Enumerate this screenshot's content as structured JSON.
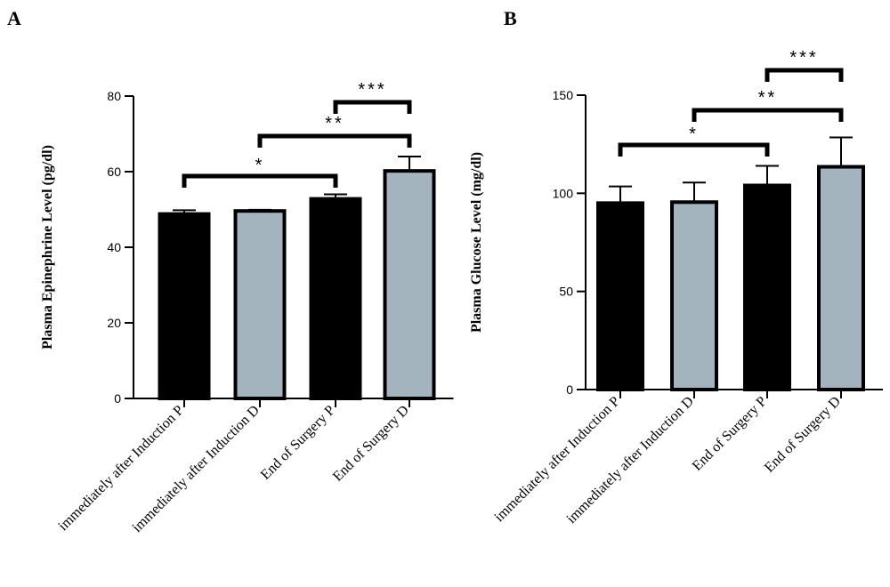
{
  "chart_data": [
    {
      "panel": "A",
      "type": "bar",
      "ylabel": "Plasma  Epinephrine Level (pg/dl)",
      "ylim": [
        0,
        80
      ],
      "yticks": [
        0,
        20,
        40,
        60,
        80
      ],
      "categories": [
        "immediately after Induction P",
        "immediately after Induction D",
        "End of Surgery P",
        "End of Surgery D"
      ],
      "values": [
        48.8,
        49.6,
        52.8,
        60.2
      ],
      "errors": [
        1.0,
        0.3,
        1.2,
        3.8
      ],
      "bar_colors": [
        "#000000",
        "#a3b4bf",
        "#000000",
        "#a3b4bf"
      ],
      "significance": [
        {
          "from": 0,
          "to": 2,
          "label": "*"
        },
        {
          "from": 1,
          "to": 3,
          "label": "**"
        },
        {
          "from": 2,
          "to": 3,
          "label": "***"
        }
      ]
    },
    {
      "panel": "B",
      "type": "bar",
      "ylabel": "Plasma  Glucose Level (mg/dl)",
      "ylim": [
        0,
        150
      ],
      "yticks": [
        0,
        50,
        100,
        150
      ],
      "categories": [
        "immediately after Induction P",
        "immediately after Induction D",
        "End of Surgery P",
        "End of Surgery D"
      ],
      "values": [
        95,
        95.5,
        104,
        113.5
      ],
      "errors": [
        8.5,
        10,
        10,
        15
      ],
      "bar_colors": [
        "#000000",
        "#a3b4bf",
        "#000000",
        "#a3b4bf"
      ],
      "significance": [
        {
          "from": 0,
          "to": 2,
          "label": "*"
        },
        {
          "from": 1,
          "to": 3,
          "label": "**"
        },
        {
          "from": 2,
          "to": 3,
          "label": "***"
        }
      ]
    }
  ]
}
